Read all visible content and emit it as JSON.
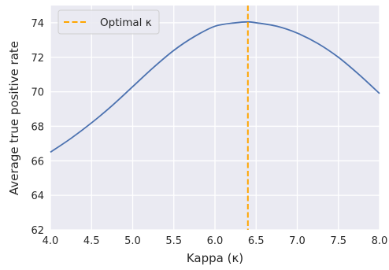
{
  "chart_data": {
    "type": "line",
    "xlabel": "Kappa (κ)",
    "ylabel": "Average true positive rate",
    "xlim": [
      4.0,
      8.0
    ],
    "ylim": [
      62,
      75
    ],
    "x_ticks": [
      4.0,
      4.5,
      5.0,
      5.5,
      6.0,
      6.5,
      7.0,
      7.5,
      8.0
    ],
    "x_tick_labels": [
      "4.0",
      "4.5",
      "5.0",
      "5.5",
      "6.0",
      "6.5",
      "7.0",
      "7.5",
      "8.0"
    ],
    "y_ticks": [
      62,
      64,
      66,
      68,
      70,
      72,
      74
    ],
    "y_tick_labels": [
      "62",
      "64",
      "66",
      "68",
      "70",
      "72",
      "74"
    ],
    "grid": true,
    "legend_position": "top-left",
    "series": [
      {
        "color": "#4c72b0",
        "x": [
          4.0,
          4.25,
          4.5,
          4.75,
          5.0,
          5.25,
          5.5,
          5.75,
          6.0,
          6.25,
          6.4,
          6.5,
          6.75,
          7.0,
          7.25,
          7.5,
          7.75,
          8.0
        ],
        "y": [
          66.5,
          67.3,
          68.2,
          69.2,
          70.3,
          71.4,
          72.4,
          73.2,
          73.8,
          74.0,
          74.05,
          74.0,
          73.8,
          73.4,
          72.8,
          72.0,
          71.0,
          69.9
        ]
      }
    ],
    "vline": {
      "x": 6.4,
      "color": "#ffa500",
      "style": "dashed",
      "legend_label": "Optimal κ"
    }
  }
}
